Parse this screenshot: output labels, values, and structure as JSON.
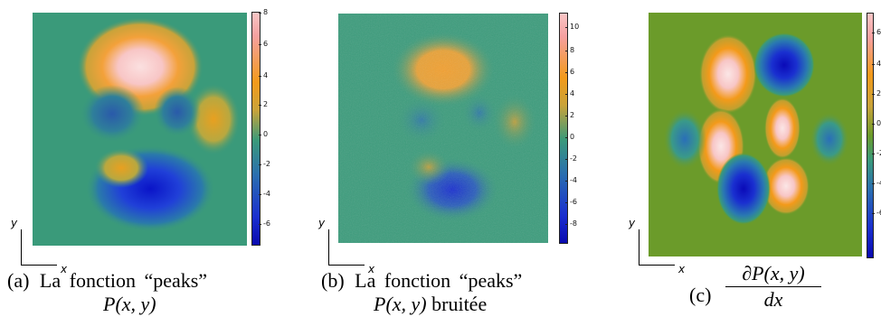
{
  "panels": [
    {
      "id": "a",
      "axis_y": "y",
      "axis_x": "x",
      "colorbar_ticks": [
        "8",
        "6",
        "4",
        "2",
        "0",
        "-2",
        "-4",
        "-6"
      ],
      "caption_label": "(a)",
      "caption_text": "La fonction “peaks”",
      "caption_math": "P(x, y)"
    },
    {
      "id": "b",
      "axis_y": "y",
      "axis_x": "x",
      "colorbar_ticks": [
        "10",
        "8",
        "6",
        "4",
        "2",
        "0",
        "-2",
        "-4",
        "-6",
        "-8"
      ],
      "caption_label": "(b)",
      "caption_text": "La fonction “peaks”",
      "caption_math": "P(x, y)",
      "caption_suffix": "bruitée"
    },
    {
      "id": "c",
      "axis_y": "y",
      "axis_x": "x",
      "colorbar_ticks": [
        "6",
        "4",
        "2",
        "0",
        "-2",
        "-4",
        "-6"
      ],
      "caption_label": "(c)",
      "caption_numerator": "∂P(x, y)",
      "caption_denominator": "dx"
    }
  ],
  "colors": {
    "background_teal": "#3a9a7a",
    "orange": "#f39a1a",
    "pink": "#f8c6c6",
    "blue": "#1a2fcf",
    "green_bg": "#6a9a2a"
  }
}
